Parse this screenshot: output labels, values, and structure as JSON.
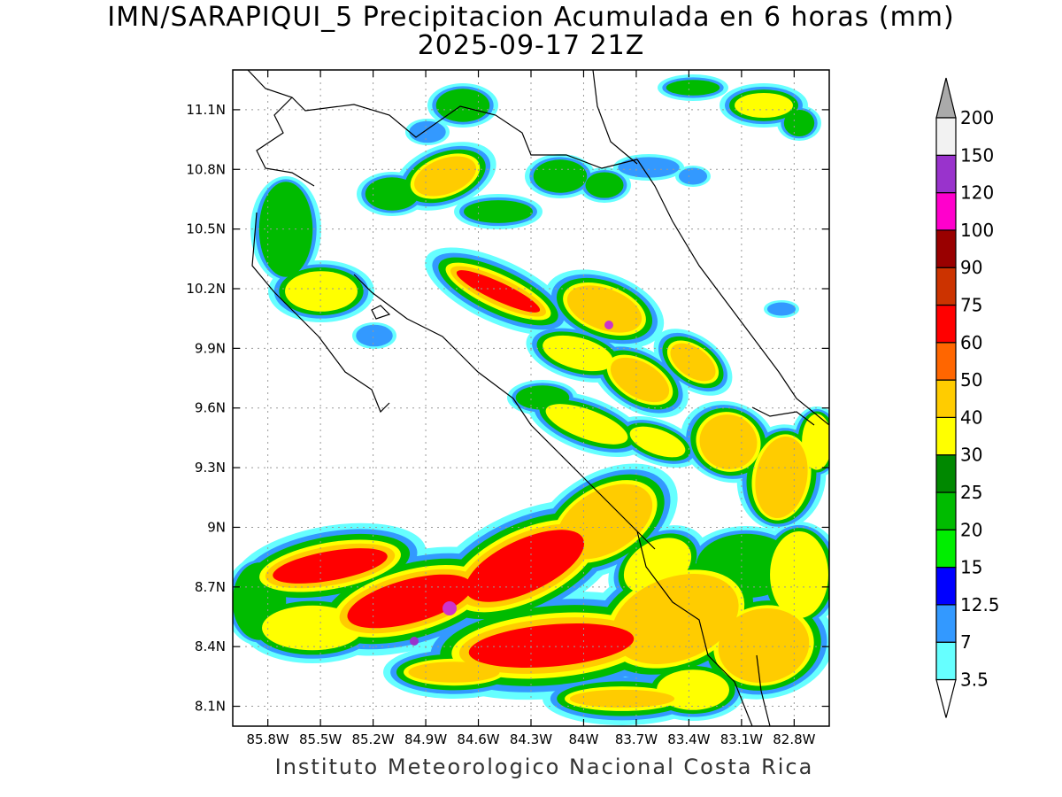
{
  "title": {
    "line1": "IMN/SARAPIQUI_5 Precipitacion Acumulada en 6 horas (mm)",
    "line2": "2025-09-17 21Z"
  },
  "map": {
    "lon_range": [
      -86.0,
      -82.6
    ],
    "lat_range": [
      8.0,
      11.3
    ],
    "lon_ticks": [
      {
        "value": -85.8,
        "label": "85.8W"
      },
      {
        "value": -85.5,
        "label": "85.5W"
      },
      {
        "value": -85.2,
        "label": "85.2W"
      },
      {
        "value": -84.9,
        "label": "84.9W"
      },
      {
        "value": -84.6,
        "label": "84.6W"
      },
      {
        "value": -84.3,
        "label": "84.3W"
      },
      {
        "value": -84.0,
        "label": "84W"
      },
      {
        "value": -83.7,
        "label": "83.7W"
      },
      {
        "value": -83.4,
        "label": "83.4W"
      },
      {
        "value": -83.1,
        "label": "83.1W"
      },
      {
        "value": -82.8,
        "label": "82.8W"
      }
    ],
    "lat_ticks": [
      {
        "value": 11.1,
        "label": "11.1N"
      },
      {
        "value": 10.8,
        "label": "10.8N"
      },
      {
        "value": 10.5,
        "label": "10.5N"
      },
      {
        "value": 10.2,
        "label": "10.2N"
      },
      {
        "value": 9.9,
        "label": "9.9N"
      },
      {
        "value": 9.6,
        "label": "9.6N"
      },
      {
        "value": 9.3,
        "label": "9.3N"
      },
      {
        "value": 9.0,
        "label": "9N"
      },
      {
        "value": 8.7,
        "label": "8.7N"
      },
      {
        "value": 8.4,
        "label": "8.4N"
      },
      {
        "value": 8.1,
        "label": "8.1N"
      }
    ],
    "grid": true,
    "coastline_color": "#000000"
  },
  "colorbar": {
    "labels": [
      "3.5",
      "7",
      "12.5",
      "15",
      "20",
      "25",
      "30",
      "40",
      "50",
      "60",
      "75",
      "90",
      "100",
      "120",
      "150",
      "200"
    ],
    "colors": [
      "#66ffff",
      "#3399ff",
      "#0000ff",
      "#00ee00",
      "#00bb00",
      "#008800",
      "#ffff00",
      "#ffcc00",
      "#ff6600",
      "#ff0000",
      "#cc3300",
      "#990000",
      "#ff00cc",
      "#9933cc",
      "#f2f2f2"
    ],
    "over_color": "#aaaaaa",
    "under_color": "#ffffff"
  },
  "credit": "Instituto Meteorologico Nacional Costa Rica"
}
